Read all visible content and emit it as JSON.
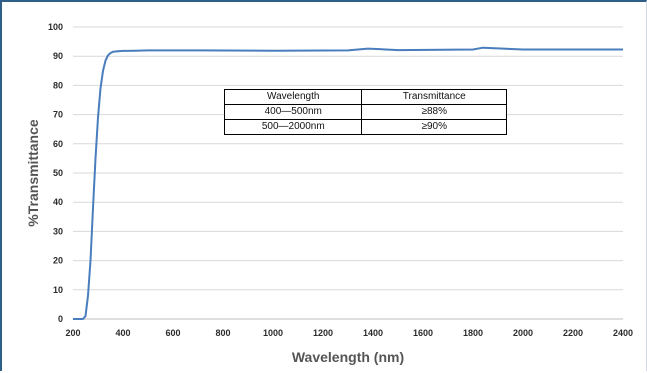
{
  "chart_data": {
    "type": "line",
    "title": "",
    "xlabel": "Wavelength (nm)",
    "ylabel": "%Transmittance",
    "xlim": [
      200,
      2400
    ],
    "ylim": [
      0,
      100
    ],
    "x_ticks": [
      "200",
      "400",
      "600",
      "800",
      "1000",
      "1200",
      "1400",
      "1600",
      "1800",
      "2000",
      "2200",
      "2400"
    ],
    "y_ticks": [
      "0",
      "10",
      "20",
      "30",
      "40",
      "50",
      "60",
      "70",
      "80",
      "90",
      "100"
    ],
    "grid": true,
    "line_color": "#4a7dbd",
    "series": [
      {
        "x": [
          200,
          240,
          250,
          260,
          270,
          280,
          290,
          300,
          310,
          320,
          330,
          340,
          350,
          360,
          380,
          400,
          450,
          500,
          700,
          1000,
          1300,
          1380,
          1500,
          1800,
          1840,
          2000,
          2200,
          2400
        ],
        "y": [
          0,
          0,
          1,
          8,
          20,
          38,
          55,
          69,
          79,
          85,
          88.5,
          90.3,
          91.1,
          91.5,
          91.7,
          91.8,
          91.9,
          92,
          92,
          91.9,
          92,
          92.6,
          92.1,
          92.3,
          92.9,
          92.3,
          92.3,
          92.3
        ]
      }
    ]
  },
  "table": {
    "headers": [
      "Wavelength",
      "Transmittance"
    ],
    "rows": [
      [
        "400—500nm",
        "≥88%"
      ],
      [
        "500—2000nm",
        "≥90%"
      ]
    ]
  }
}
